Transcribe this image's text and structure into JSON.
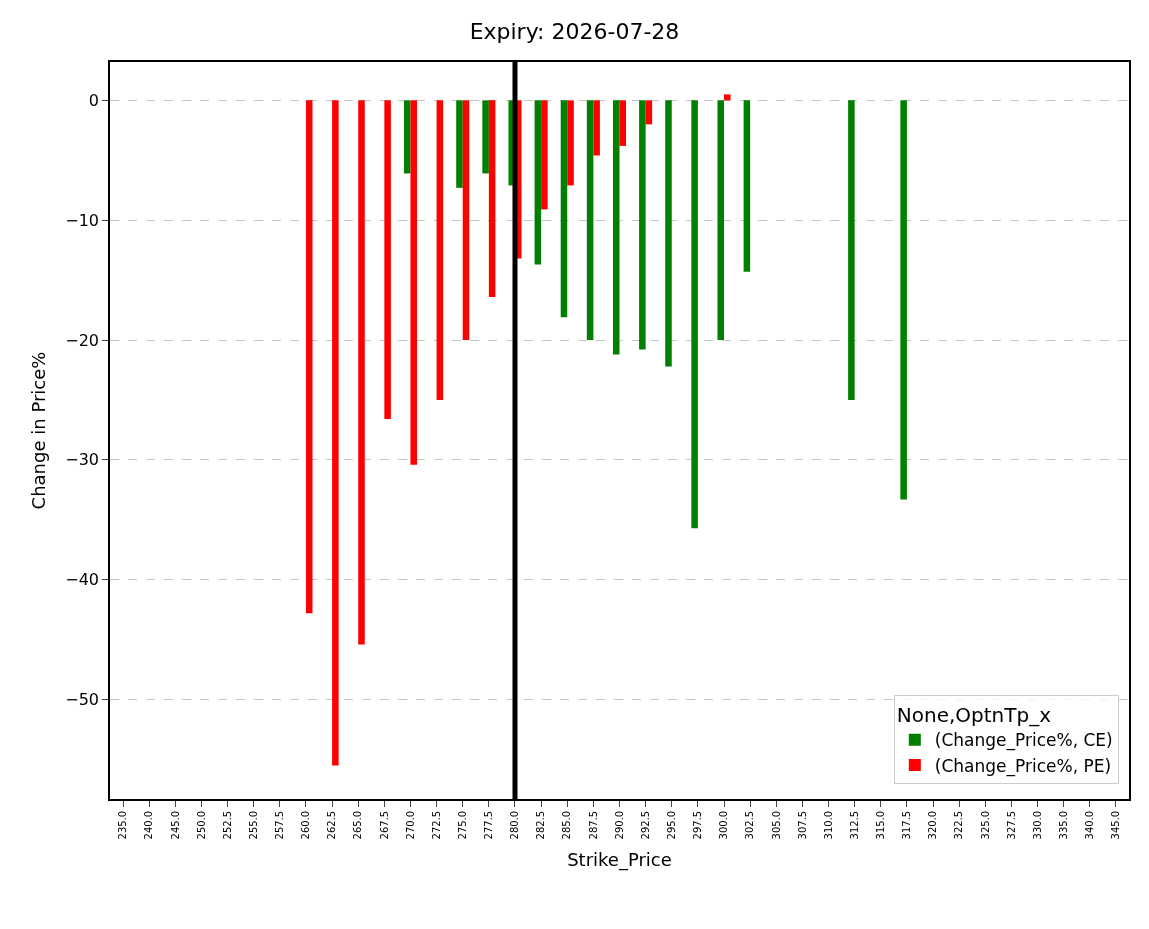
{
  "chart_data": {
    "type": "bar",
    "title": "Expiry: 2026-07-28",
    "xlabel": "Strike_Price",
    "ylabel": "Change in Price%",
    "legend_title": "None,OptnTp_x",
    "categories": [
      "235.0",
      "240.0",
      "245.0",
      "250.0",
      "252.5",
      "255.0",
      "257.5",
      "260.0",
      "262.5",
      "265.0",
      "267.5",
      "270.0",
      "272.5",
      "275.0",
      "277.5",
      "280.0",
      "282.5",
      "285.0",
      "287.5",
      "290.0",
      "292.5",
      "295.0",
      "297.5",
      "300.0",
      "302.5",
      "305.0",
      "307.5",
      "310.0",
      "312.5",
      "315.0",
      "317.5",
      "320.0",
      "322.5",
      "325.0",
      "327.5",
      "330.0",
      "335.0",
      "340.0",
      "345.0"
    ],
    "series": [
      {
        "name": "(Change_Price%, CE)",
        "color": "#008000",
        "values": [
          null,
          null,
          null,
          null,
          null,
          null,
          null,
          null,
          null,
          null,
          null,
          -6.1,
          null,
          -7.3,
          -6.1,
          -7.1,
          -13.7,
          -18.1,
          -20.0,
          -21.2,
          -20.8,
          -22.2,
          -35.7,
          -20.0,
          -14.3,
          null,
          null,
          null,
          -25.0,
          null,
          -33.3,
          null,
          null,
          null,
          null,
          null,
          null,
          null,
          null
        ]
      },
      {
        "name": "(Change_Price%, PE)",
        "color": "#ff0000",
        "values": [
          null,
          null,
          null,
          null,
          null,
          null,
          null,
          -42.8,
          -55.5,
          -45.4,
          -26.6,
          -30.4,
          -25.0,
          -20.0,
          -16.4,
          -13.2,
          -9.1,
          -7.1,
          -4.6,
          -3.8,
          -2.0,
          null,
          null,
          0.5,
          null,
          null,
          null,
          null,
          null,
          null,
          null,
          null,
          null,
          null,
          null,
          null,
          null,
          null,
          null
        ]
      }
    ],
    "ylim": [
      -58.3,
      3.2
    ],
    "yticks": [
      {
        "value": -50,
        "label": "−50"
      },
      {
        "value": -40,
        "label": "−40"
      },
      {
        "value": -30,
        "label": "−30"
      },
      {
        "value": -20,
        "label": "−20"
      },
      {
        "value": -10,
        "label": "−10"
      },
      0
    ],
    "ref_lines": [
      {
        "axis": "x",
        "value": "280.0",
        "color": "#000000"
      }
    ],
    "grid": "y",
    "legend": "bottom right"
  }
}
